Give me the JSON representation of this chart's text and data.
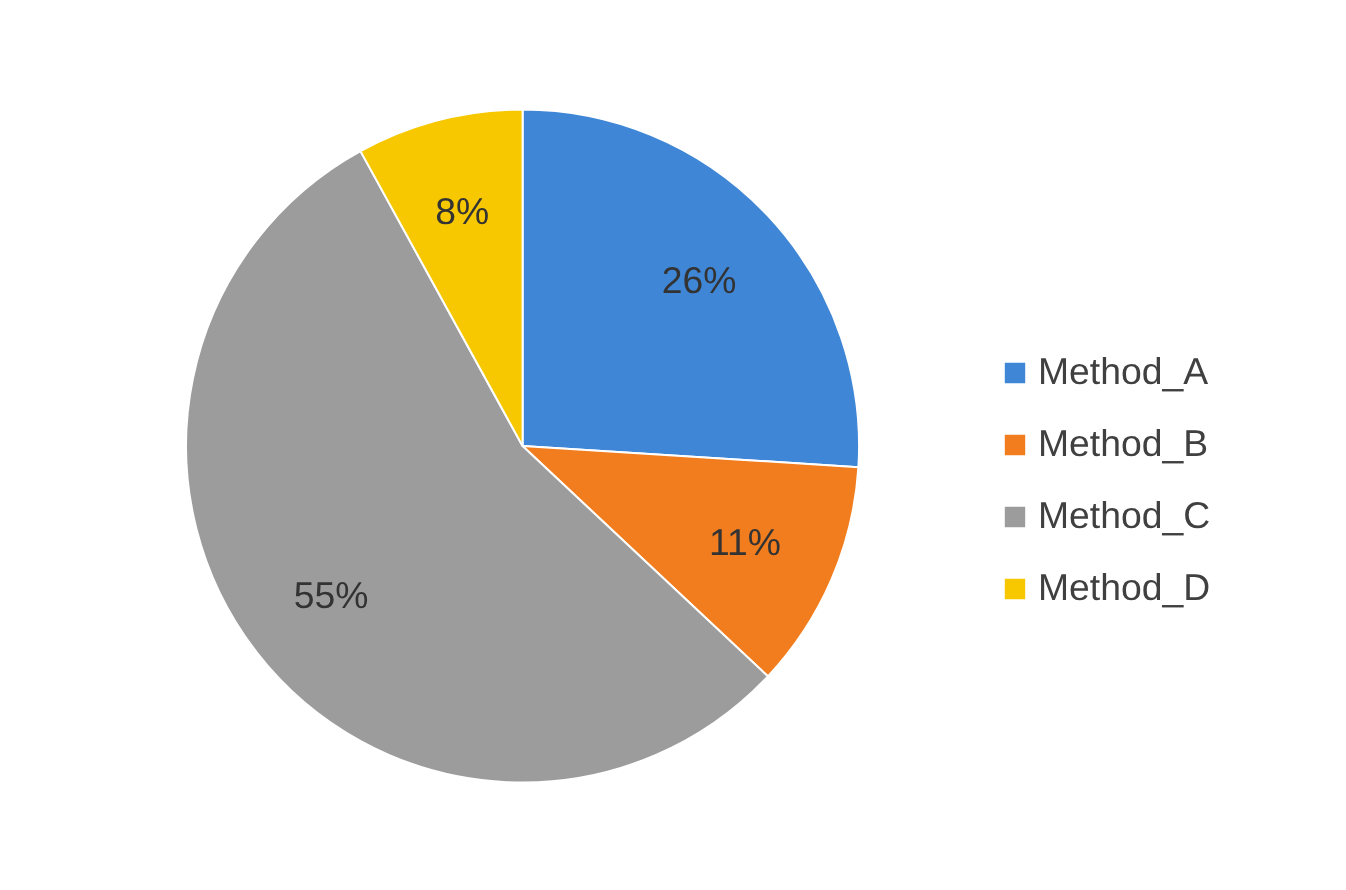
{
  "chart_data": {
    "type": "pie",
    "categories": [
      "Method_A",
      "Method_B",
      "Method_C",
      "Method_D"
    ],
    "values": [
      26,
      11,
      55,
      8
    ],
    "colors": [
      "#3f87d6",
      "#f27d1e",
      "#9c9c9c",
      "#f7c800"
    ],
    "value_labels": [
      "26%",
      "11%",
      "55%",
      "8%"
    ],
    "legend": "right"
  }
}
